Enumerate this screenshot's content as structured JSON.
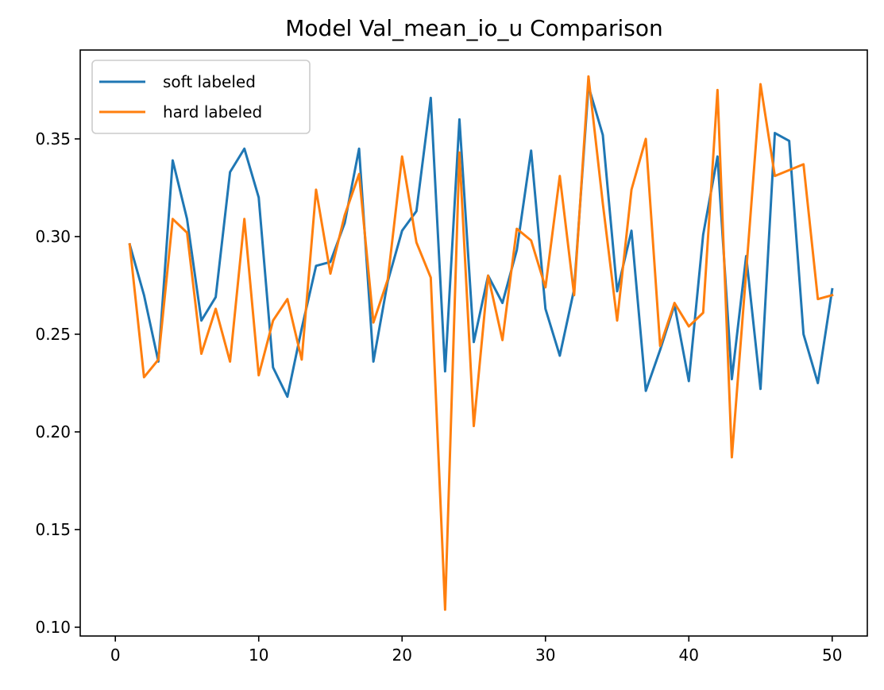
{
  "chart_data": {
    "type": "line",
    "title": "Model Val_mean_io_u Comparison",
    "xlabel": "",
    "ylabel": "",
    "xlim": [
      -2.45,
      52.45
    ],
    "ylim": [
      0.0955,
      0.3955
    ],
    "xticks": [
      0,
      10,
      20,
      30,
      40,
      50
    ],
    "xtick_labels": [
      "0",
      "10",
      "20",
      "30",
      "40",
      "50"
    ],
    "yticks": [
      0.1,
      0.15,
      0.2,
      0.25,
      0.3,
      0.35
    ],
    "ytick_labels": [
      "0.10",
      "0.15",
      "0.20",
      "0.25",
      "0.30",
      "0.35"
    ],
    "grid": false,
    "legend_position": "top-left",
    "x": [
      1,
      2,
      3,
      4,
      5,
      6,
      7,
      8,
      9,
      10,
      11,
      12,
      13,
      14,
      15,
      16,
      17,
      18,
      19,
      20,
      21,
      22,
      23,
      24,
      25,
      26,
      27,
      28,
      29,
      30,
      31,
      32,
      33,
      34,
      35,
      36,
      37,
      38,
      39,
      40,
      41,
      42,
      43,
      44,
      45,
      46,
      47,
      48,
      49,
      50
    ],
    "series": [
      {
        "name": "soft labeled",
        "color": "#1f77b4",
        "values": [
          0.296,
          0.27,
          0.236,
          0.339,
          0.309,
          0.257,
          0.269,
          0.333,
          0.345,
          0.32,
          0.233,
          0.218,
          0.253,
          0.285,
          0.287,
          0.307,
          0.345,
          0.236,
          0.277,
          0.303,
          0.313,
          0.371,
          0.231,
          0.36,
          0.246,
          0.28,
          0.266,
          0.293,
          0.344,
          0.263,
          0.239,
          0.273,
          0.377,
          0.352,
          0.272,
          0.303,
          0.221,
          0.242,
          0.265,
          0.226,
          0.301,
          0.341,
          0.227,
          0.29,
          0.222,
          0.353,
          0.349,
          0.25,
          0.225,
          0.273
        ]
      },
      {
        "name": "hard labeled",
        "color": "#ff7f0e",
        "values": [
          0.296,
          0.228,
          0.237,
          0.309,
          0.302,
          0.24,
          0.263,
          0.236,
          0.309,
          0.229,
          0.257,
          0.268,
          0.237,
          0.324,
          0.281,
          0.311,
          0.332,
          0.256,
          0.278,
          0.341,
          0.297,
          0.279,
          0.109,
          0.343,
          0.203,
          0.28,
          0.247,
          0.304,
          0.298,
          0.274,
          0.331,
          0.27,
          0.382,
          0.317,
          0.257,
          0.324,
          0.35,
          0.244,
          0.266,
          0.254,
          0.261,
          0.375,
          0.187,
          0.282,
          0.378,
          0.331,
          0.334,
          0.337,
          0.268,
          0.27
        ]
      }
    ]
  }
}
